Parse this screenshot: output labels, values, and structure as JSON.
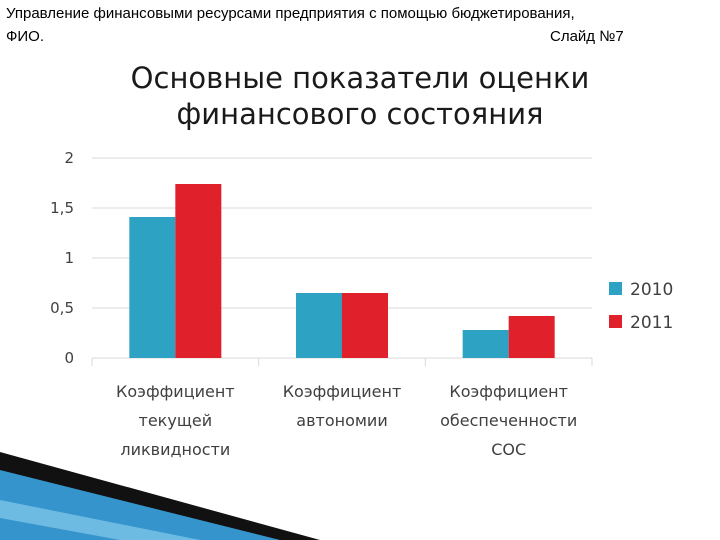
{
  "header": {
    "line1": "Управление финансовыми ресурсами предприятия с помощью бюджетирования,",
    "line2": "ФИО.",
    "slide": "Слайд №7"
  },
  "slide_title": {
    "line1": "Основные показатели оценки",
    "line2": "финансового состояния"
  },
  "chart_data": {
    "type": "bar",
    "categories": [
      [
        "Коэффициент",
        "текущей",
        "ликвидности"
      ],
      [
        "Коэффициент",
        "автономии"
      ],
      [
        "Коэффициент",
        "обеспеченности",
        "СОС"
      ]
    ],
    "series": [
      {
        "name": "2010",
        "color": "#2ea2c3",
        "values": [
          1.41,
          0.65,
          0.28
        ]
      },
      {
        "name": "2011",
        "color": "#e0202a",
        "values": [
          1.74,
          0.65,
          0.42
        ]
      }
    ],
    "yticks": [
      "0",
      "0,5",
      "1",
      "1,5",
      "2"
    ],
    "ylim": [
      0,
      2
    ],
    "grid": true,
    "legend": "right",
    "xlabel": "",
    "ylabel": ""
  },
  "colors": {
    "grid": "#d9d9d9",
    "axis_text": "#404040",
    "decor_dark": "#111111",
    "decor_blue": "#1f88c6"
  }
}
